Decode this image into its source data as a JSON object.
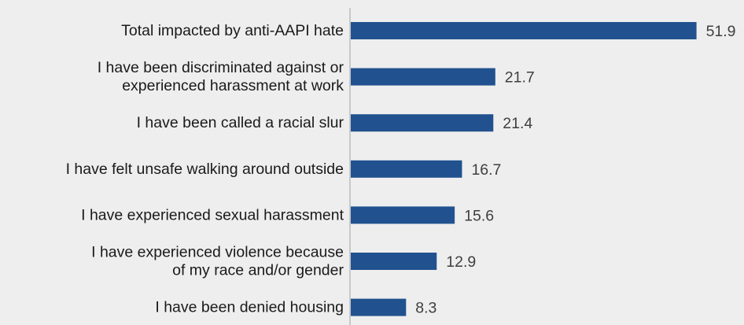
{
  "chart_data": {
    "type": "bar",
    "orientation": "horizontal",
    "categories": [
      [
        "Total impacted by anti-AAPI hate"
      ],
      [
        "I have been discriminated against or",
        "experienced harassment at work"
      ],
      [
        "I have been called a racial slur"
      ],
      [
        "I have felt unsafe walking around outside"
      ],
      [
        "I have experienced sexual harassment"
      ],
      [
        "I have experienced violence because",
        "of my race and/or gender"
      ],
      [
        "I have been denied housing"
      ]
    ],
    "values": [
      51.9,
      21.7,
      21.4,
      16.7,
      15.6,
      12.9,
      8.3
    ],
    "value_labels": [
      "51.9",
      "21.7",
      "21.4",
      "16.7",
      "15.6",
      "12.9",
      "8.3"
    ],
    "title": "",
    "xlabel": "",
    "ylabel": "",
    "xlim": [
      0,
      52
    ],
    "grid": false,
    "legend": "none",
    "colors": {
      "bar": "#21528f",
      "axis": "#c8c8c8",
      "background": "#eeeeee",
      "label_text": "#1a1a1a",
      "value_text": "#3f3f3f"
    }
  }
}
